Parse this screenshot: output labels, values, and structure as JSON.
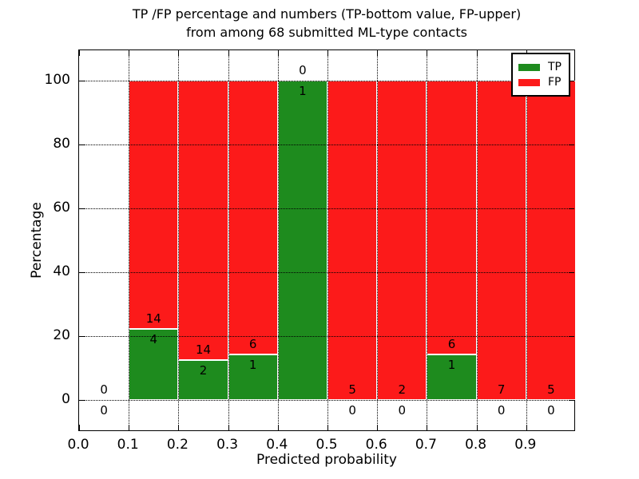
{
  "title": {
    "line1": "TP /FP percentage and numbers (TP-bottom value, FP-upper)",
    "line2": "from among 68 submitted ML-type contacts"
  },
  "axes": {
    "xlabel": "Predicted probability",
    "ylabel": "Percentage",
    "xtick_labels": [
      "0.0",
      "0.1",
      "0.2",
      "0.3",
      "0.4",
      "0.5",
      "0.6",
      "0.7",
      "0.8",
      "0.9"
    ],
    "ytick_labels": [
      "0",
      "20",
      "40",
      "60",
      "80",
      "100"
    ]
  },
  "legend": {
    "items": [
      {
        "label": "TP",
        "color": "#1e8b1e"
      },
      {
        "label": "FP",
        "color": "#fc1a1a"
      }
    ]
  },
  "chart_data": {
    "type": "bar",
    "stacked": true,
    "normalized": "percent",
    "title": "TP /FP percentage and numbers (TP-bottom value, FP-upper) from among 68 submitted ML-type contacts",
    "xlabel": "Predicted probability",
    "ylabel": "Percentage",
    "xlim": [
      0.0,
      1.0
    ],
    "ylim": [
      -10,
      109.5
    ],
    "grid": true,
    "grid_style": "dotted",
    "legend_position": "upper right",
    "total_contacts": 68,
    "bin_edges": [
      0.0,
      0.1,
      0.2,
      0.3,
      0.4,
      0.5,
      0.6,
      0.7,
      0.8,
      0.9,
      1.0
    ],
    "series": [
      {
        "name": "TP",
        "color": "#1e8b1e",
        "counts": [
          0,
          4,
          2,
          1,
          1,
          0,
          0,
          1,
          0,
          0
        ]
      },
      {
        "name": "FP",
        "color": "#fc1a1a",
        "counts": [
          0,
          14,
          14,
          6,
          0,
          5,
          2,
          6,
          7,
          5
        ]
      }
    ],
    "tp_percent_per_bin": [
      0,
      22.2,
      12.5,
      14.3,
      100,
      0,
      0,
      14.3,
      0,
      0
    ],
    "annotations": "FP count shown above the TP/FP boundary, TP count shown below it, for each bin"
  }
}
